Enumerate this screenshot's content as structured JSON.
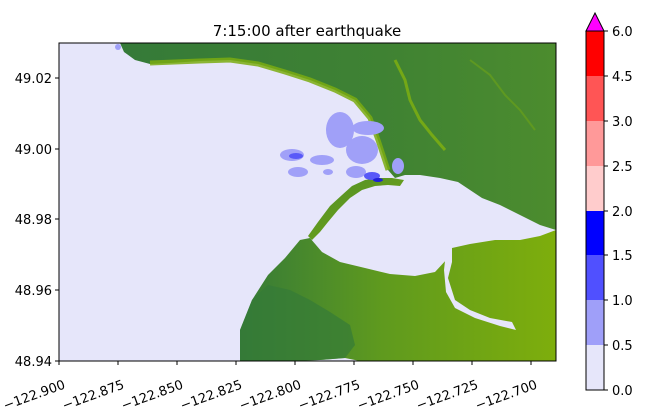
{
  "title": "7:15:00 after earthquake",
  "map": {
    "x_ticks": [
      "−122.900",
      "−122.875",
      "−122.850",
      "−122.825",
      "−122.800",
      "−122.775",
      "−122.750",
      "−122.725",
      "−122.700"
    ],
    "y_ticks": [
      "49.02",
      "49.00",
      "48.98",
      "48.96",
      "48.94"
    ],
    "x_range": [
      -122.9,
      -122.695
    ],
    "y_range": [
      48.94,
      49.03
    ],
    "colors": {
      "water_base": "#e6e6fa",
      "land_dark": "#357a38",
      "land_mid": "#4e8e2a",
      "land_light": "#7aab10",
      "wave_light": "#a0a0f8",
      "wave_mid": "#5858f8",
      "wave_dark": "#2020d8"
    }
  },
  "colorbar": {
    "tick_labels": [
      "0.0",
      "0.5",
      "1.0",
      "1.5",
      "2.0",
      "2.5",
      "3.0",
      "4.5",
      "6.0"
    ],
    "bins": [
      {
        "from": 0.0,
        "to": 0.5,
        "color": "#e6e6fa"
      },
      {
        "from": 0.5,
        "to": 1.0,
        "color": "#9f9ff9"
      },
      {
        "from": 1.0,
        "to": 1.5,
        "color": "#5050ff"
      },
      {
        "from": 1.5,
        "to": 2.0,
        "color": "#0000ff"
      },
      {
        "from": 2.0,
        "to": 2.5,
        "color": "#ffcccc"
      },
      {
        "from": 2.5,
        "to": 3.0,
        "color": "#ff9999"
      },
      {
        "from": 3.0,
        "to": 4.5,
        "color": "#ff5555"
      },
      {
        "from": 4.5,
        "to": 6.0,
        "color": "#ff0000"
      }
    ],
    "extend_color": "#ff00ff"
  }
}
